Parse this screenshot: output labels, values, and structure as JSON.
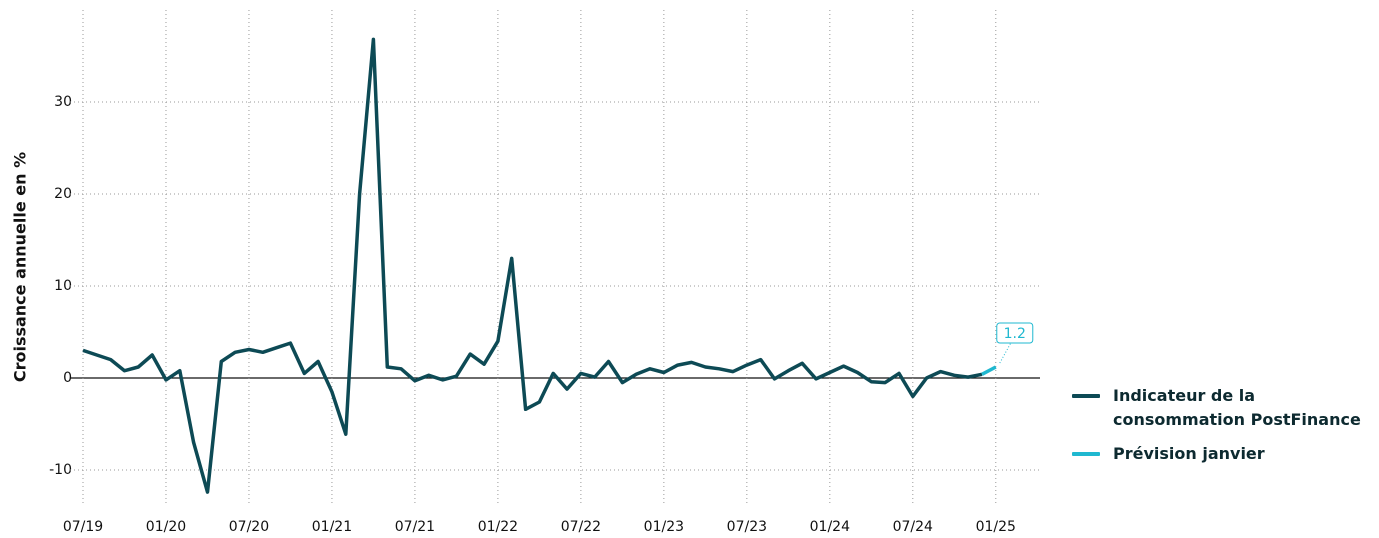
{
  "chart_data": {
    "type": "line",
    "ylabel": "Croissance annuelle en %",
    "categories": [
      "07/19",
      null,
      null,
      null,
      null,
      null,
      "01/20",
      null,
      null,
      null,
      null,
      null,
      "07/20",
      null,
      null,
      null,
      null,
      null,
      "01/21",
      null,
      null,
      null,
      null,
      null,
      "07/21",
      null,
      null,
      null,
      null,
      null,
      "01/22",
      null,
      null,
      null,
      null,
      null,
      "07/22",
      null,
      null,
      null,
      null,
      null,
      "01/23",
      null,
      null,
      null,
      null,
      null,
      "07/23",
      null,
      null,
      null,
      null,
      null,
      "01/24",
      null,
      null,
      null,
      null,
      null,
      "07/24",
      null,
      null,
      null,
      null,
      null,
      "01/25"
    ],
    "series": [
      {
        "name": "Indicateur de la consommation PostFinance",
        "color": "#0d4a55",
        "values": [
          3.0,
          2.5,
          2.0,
          0.8,
          1.2,
          2.5,
          -0.2,
          0.8,
          -7.0,
          -12.4,
          1.8,
          2.8,
          3.1,
          2.8,
          3.3,
          3.8,
          0.5,
          1.8,
          -1.5,
          -6.1,
          20.0,
          36.8,
          1.2,
          1.0,
          -0.3,
          0.3,
          -0.2,
          0.2,
          2.6,
          1.5,
          4.0,
          13.0,
          -3.4,
          -2.6,
          0.5,
          -1.2,
          0.5,
          0.1,
          1.8,
          -0.5,
          0.4,
          1.0,
          0.6,
          1.4,
          1.7,
          1.2,
          1.0,
          0.7,
          1.4,
          2.0,
          -0.1,
          0.8,
          1.6,
          -0.1,
          0.6,
          1.3,
          0.6,
          -0.4,
          -0.5,
          0.5,
          -2.0,
          0.0,
          0.7,
          0.3,
          0.1,
          0.4,
          null
        ]
      },
      {
        "name": "Prévision janvier",
        "color": "#1fb8d0",
        "values": [
          null,
          null,
          null,
          null,
          null,
          null,
          null,
          null,
          null,
          null,
          null,
          null,
          null,
          null,
          null,
          null,
          null,
          null,
          null,
          null,
          null,
          null,
          null,
          null,
          null,
          null,
          null,
          null,
          null,
          null,
          null,
          null,
          null,
          null,
          null,
          null,
          null,
          null,
          null,
          null,
          null,
          null,
          null,
          null,
          null,
          null,
          null,
          null,
          null,
          null,
          null,
          null,
          null,
          null,
          null,
          null,
          null,
          null,
          null,
          null,
          null,
          null,
          null,
          null,
          null,
          0.4,
          1.2
        ]
      }
    ],
    "ylim": [
      -13.8,
      40
    ],
    "yticks": [
      -10,
      0,
      10,
      20,
      30
    ],
    "grid": true
  }
}
